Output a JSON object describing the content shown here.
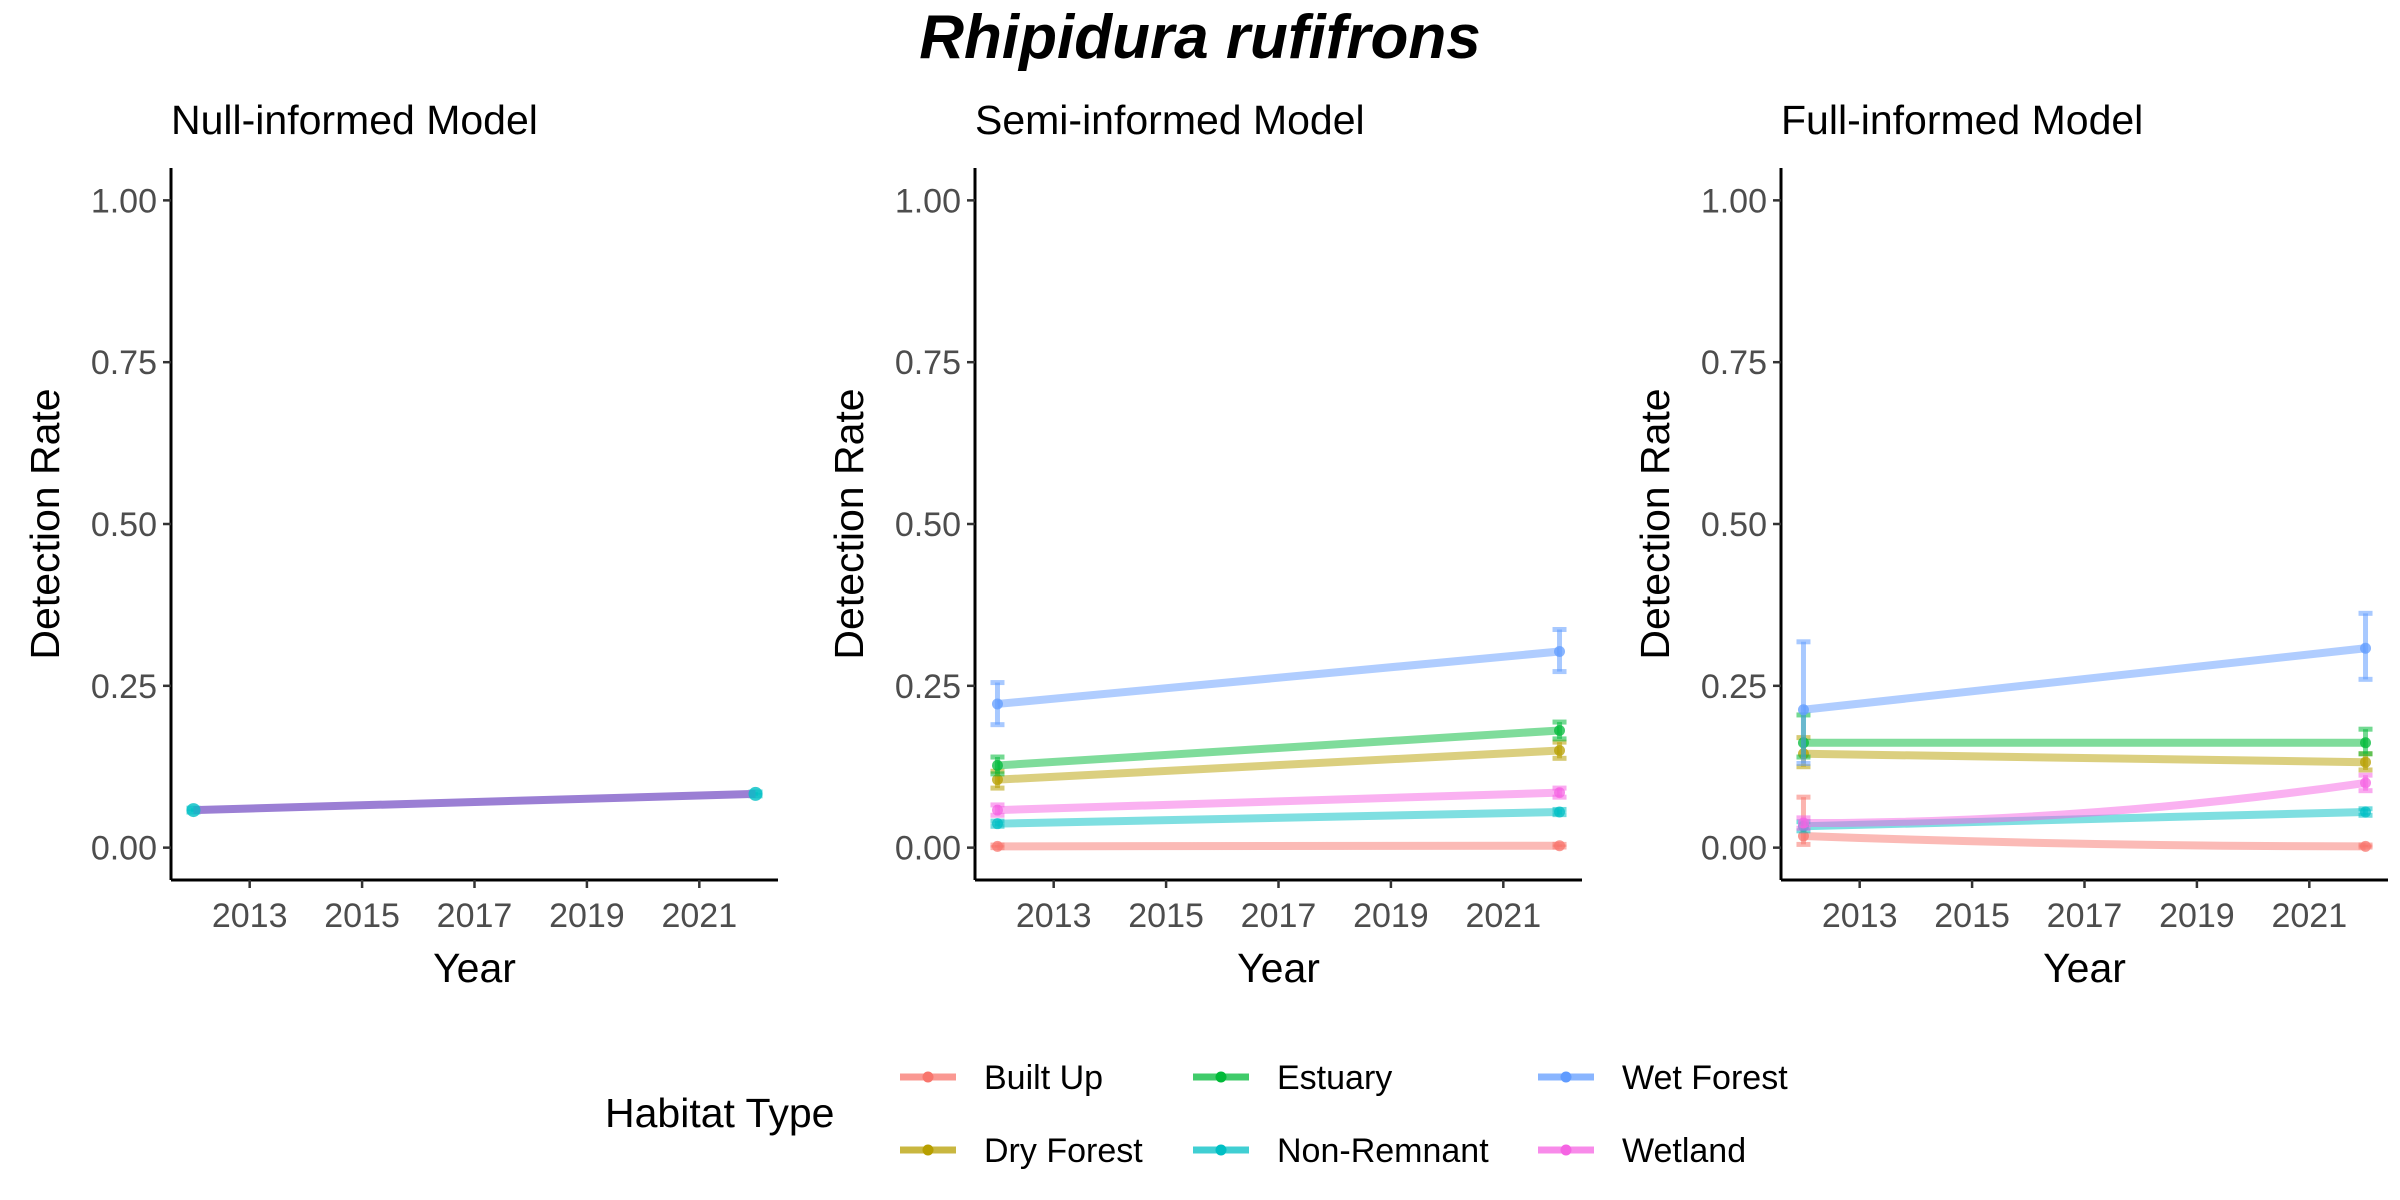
{
  "title": "Rhipidura rufifrons",
  "legend": {
    "title": "Habitat Type",
    "items": [
      "Built Up",
      "Dry Forest",
      "Estuary",
      "Non-Remnant",
      "Wet Forest",
      "Wetland"
    ]
  },
  "colors": {
    "Built Up": "#F8766D",
    "Dry Forest": "#B79F00",
    "Estuary": "#00BA38",
    "Non-Remnant": "#00BFC4",
    "Wet Forest": "#619CFF",
    "Wetland": "#F564E3",
    "null_line": "#9B7FD4"
  },
  "chart_data": [
    {
      "type": "line",
      "title": "Null-informed Model",
      "xlabel": "Year",
      "ylabel": "Detection Rate",
      "xlim": [
        2011.6,
        2022.4
      ],
      "ylim": [
        -0.05,
        1.05
      ],
      "xticks": [
        2013,
        2015,
        2017,
        2019,
        2021
      ],
      "xtick_labels": [
        "2013",
        "2015",
        "2017",
        "2019",
        "2021"
      ],
      "yticks": [
        0,
        0.25,
        0.5,
        0.75,
        1
      ],
      "ytick_labels": [
        "0.00",
        "0.25",
        "0.50",
        "0.75",
        "1.00"
      ],
      "x": [
        2012,
        2022
      ],
      "series": [
        {
          "values": [
            0.058,
            0.083
          ],
          "lower": [
            0.055,
            0.08
          ],
          "upper": [
            0.061,
            0.086
          ]
        }
      ]
    },
    {
      "type": "line",
      "title": "Semi-informed Model",
      "xlabel": "Year",
      "ylabel": "Detection Rate",
      "xlim": [
        2011.6,
        2022.4
      ],
      "ylim": [
        -0.05,
        1.05
      ],
      "xticks": [
        2013,
        2015,
        2017,
        2019,
        2021
      ],
      "xtick_labels": [
        "2013",
        "2015",
        "2017",
        "2019",
        "2021"
      ],
      "yticks": [
        0,
        0.25,
        0.5,
        0.75,
        1
      ],
      "ytick_labels": [
        "0.00",
        "0.25",
        "0.50",
        "0.75",
        "1.00"
      ],
      "x": [
        2012,
        2022
      ],
      "series": [
        {
          "name": "Built Up",
          "values": [
            0.002,
            0.003
          ],
          "lower": [
            0.0,
            0.001
          ],
          "upper": [
            0.004,
            0.005
          ]
        },
        {
          "name": "Dry Forest",
          "values": [
            0.105,
            0.15
          ],
          "lower": [
            0.092,
            0.138
          ],
          "upper": [
            0.118,
            0.163
          ]
        },
        {
          "name": "Estuary",
          "values": [
            0.127,
            0.181
          ],
          "lower": [
            0.114,
            0.168
          ],
          "upper": [
            0.14,
            0.194
          ]
        },
        {
          "name": "Non-Remnant",
          "values": [
            0.037,
            0.055
          ],
          "lower": [
            0.033,
            0.051
          ],
          "upper": [
            0.041,
            0.059
          ]
        },
        {
          "name": "Wet Forest",
          "values": [
            0.222,
            0.303
          ],
          "lower": [
            0.19,
            0.272
          ],
          "upper": [
            0.255,
            0.337
          ]
        },
        {
          "name": "Wetland",
          "values": [
            0.058,
            0.085
          ],
          "lower": [
            0.05,
            0.078
          ],
          "upper": [
            0.066,
            0.092
          ]
        }
      ]
    },
    {
      "type": "line",
      "title": "Full-informed Model",
      "xlabel": "Year",
      "ylabel": "Detection Rate",
      "xlim": [
        2011.6,
        2022.4
      ],
      "ylim": [
        -0.05,
        1.05
      ],
      "xticks": [
        2013,
        2015,
        2017,
        2019,
        2021
      ],
      "xtick_labels": [
        "2013",
        "2015",
        "2017",
        "2019",
        "2021"
      ],
      "yticks": [
        0,
        0.25,
        0.5,
        0.75,
        1
      ],
      "ytick_labels": [
        "0.00",
        "0.25",
        "0.50",
        "0.75",
        "1.00"
      ],
      "x": [
        2012,
        2022
      ],
      "series": [
        {
          "name": "Built Up",
          "values": [
            0.018,
            0.002
          ],
          "lower": [
            0.005,
            0.001
          ],
          "upper": [
            0.078,
            0.004
          ]
        },
        {
          "name": "Dry Forest",
          "values": [
            0.145,
            0.132
          ],
          "lower": [
            0.125,
            0.12
          ],
          "upper": [
            0.17,
            0.145
          ]
        },
        {
          "name": "Estuary",
          "values": [
            0.162,
            0.162
          ],
          "lower": [
            0.14,
            0.145
          ],
          "upper": [
            0.205,
            0.183
          ]
        },
        {
          "name": "Non-Remnant",
          "values": [
            0.033,
            0.055
          ],
          "lower": [
            0.026,
            0.05
          ],
          "upper": [
            0.04,
            0.06
          ]
        },
        {
          "name": "Wet Forest",
          "values": [
            0.213,
            0.308
          ],
          "lower": [
            0.13,
            0.26
          ],
          "upper": [
            0.318,
            0.362
          ]
        },
        {
          "name": "Wetland",
          "values": [
            0.038,
            0.1
          ],
          "lower": [
            0.03,
            0.088
          ],
          "upper": [
            0.046,
            0.112
          ]
        }
      ]
    }
  ]
}
